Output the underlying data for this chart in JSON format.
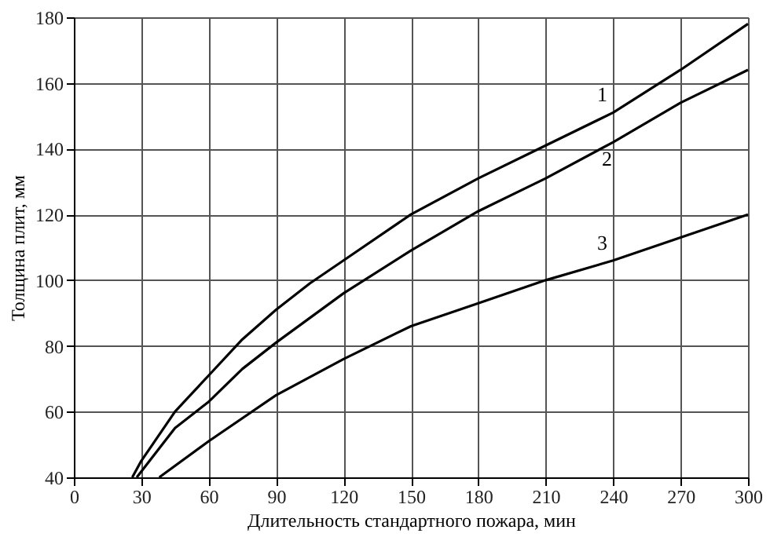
{
  "chart_data": {
    "type": "line",
    "xlabel": "Длительность стандартного пожара, мин",
    "ylabel": "Толщина плит, мм",
    "xlim": [
      0,
      300
    ],
    "xticks": [
      0,
      30,
      60,
      90,
      120,
      150,
      180,
      210,
      240,
      270,
      300
    ],
    "ylim": [
      40,
      180
    ],
    "yticks": [
      40,
      60,
      80,
      100,
      120,
      140,
      160,
      180
    ],
    "grid": true,
    "legend": false,
    "marker": "none",
    "line_style": "solid",
    "series": [
      {
        "name": "1",
        "color": "#000000",
        "x": [
          26,
          30,
          45,
          60,
          75,
          90,
          105,
          120,
          150,
          180,
          210,
          240,
          270,
          300
        ],
        "values": [
          40,
          45,
          60,
          71,
          82,
          91,
          99,
          106,
          120,
          131,
          141,
          151,
          164,
          178
        ]
      },
      {
        "name": "2",
        "color": "#000000",
        "x": [
          28,
          45,
          60,
          75,
          90,
          120,
          150,
          180,
          210,
          240,
          270,
          300
        ],
        "values": [
          40,
          55,
          63,
          73,
          81,
          96,
          109,
          121,
          131,
          142,
          154,
          164
        ]
      },
      {
        "name": "3",
        "color": "#000000",
        "x": [
          38,
          60,
          90,
          120,
          150,
          180,
          210,
          240,
          270,
          300
        ],
        "values": [
          40,
          51,
          65,
          76,
          86,
          93,
          100,
          106,
          113,
          120
        ]
      }
    ]
  }
}
